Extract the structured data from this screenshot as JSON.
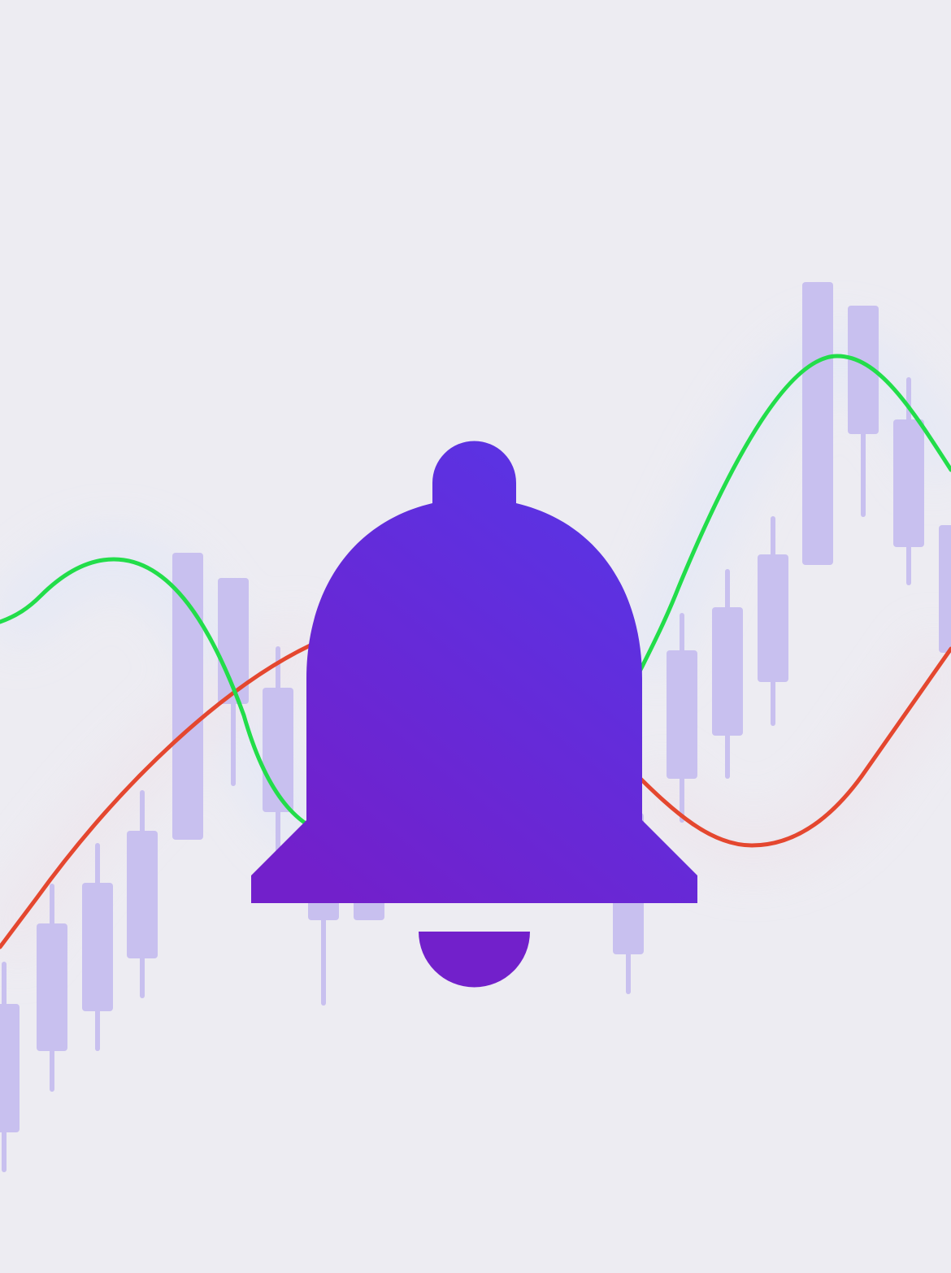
{
  "illustration": {
    "subject": "notification-bell-over-candlestick-chart",
    "colors": {
      "background": "#edecf2",
      "candle": "#c8c0ef",
      "line_green": "#22dd4a",
      "line_red": "#e4472f",
      "bell_top": "#5835e6",
      "bell_bottom": "#7220cb"
    },
    "icon": "bell-icon"
  }
}
